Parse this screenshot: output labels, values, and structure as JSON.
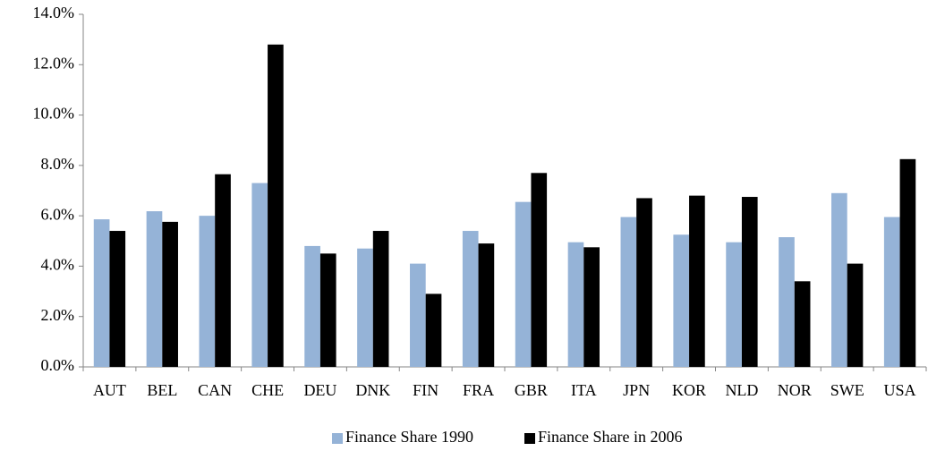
{
  "chart_data": {
    "type": "bar",
    "categories": [
      "AUT",
      "BEL",
      "CAN",
      "CHE",
      "DEU",
      "DNK",
      "FIN",
      "FRA",
      "GBR",
      "ITA",
      "JPN",
      "KOR",
      "NLD",
      "NOR",
      "SWE",
      "USA"
    ],
    "series": [
      {
        "name": "Finance Share 1990",
        "color": "#95b3d7",
        "values": [
          5.86,
          6.18,
          6.0,
          7.3,
          4.8,
          4.7,
          4.1,
          5.4,
          6.55,
          4.95,
          5.95,
          5.25,
          4.95,
          5.15,
          6.9,
          5.95
        ]
      },
      {
        "name": "Finance Share in 2006",
        "color": "#000000",
        "values": [
          5.4,
          5.76,
          7.65,
          12.8,
          4.5,
          5.4,
          2.9,
          4.9,
          7.7,
          4.75,
          6.7,
          6.8,
          6.75,
          3.4,
          4.1,
          8.25
        ]
      }
    ],
    "ylim": [
      0,
      14
    ],
    "yticks": [
      {
        "value": 0,
        "label": "0.0%"
      },
      {
        "value": 2,
        "label": "2.0%"
      },
      {
        "value": 4,
        "label": "4.0%"
      },
      {
        "value": 6,
        "label": "6.0%"
      },
      {
        "value": 8,
        "label": "8.0%"
      },
      {
        "value": 10,
        "label": "10.0%"
      },
      {
        "value": 12,
        "label": "12.0%"
      },
      {
        "value": 14,
        "label": "14.0%"
      }
    ],
    "grid": false,
    "legend": "bottom"
  }
}
